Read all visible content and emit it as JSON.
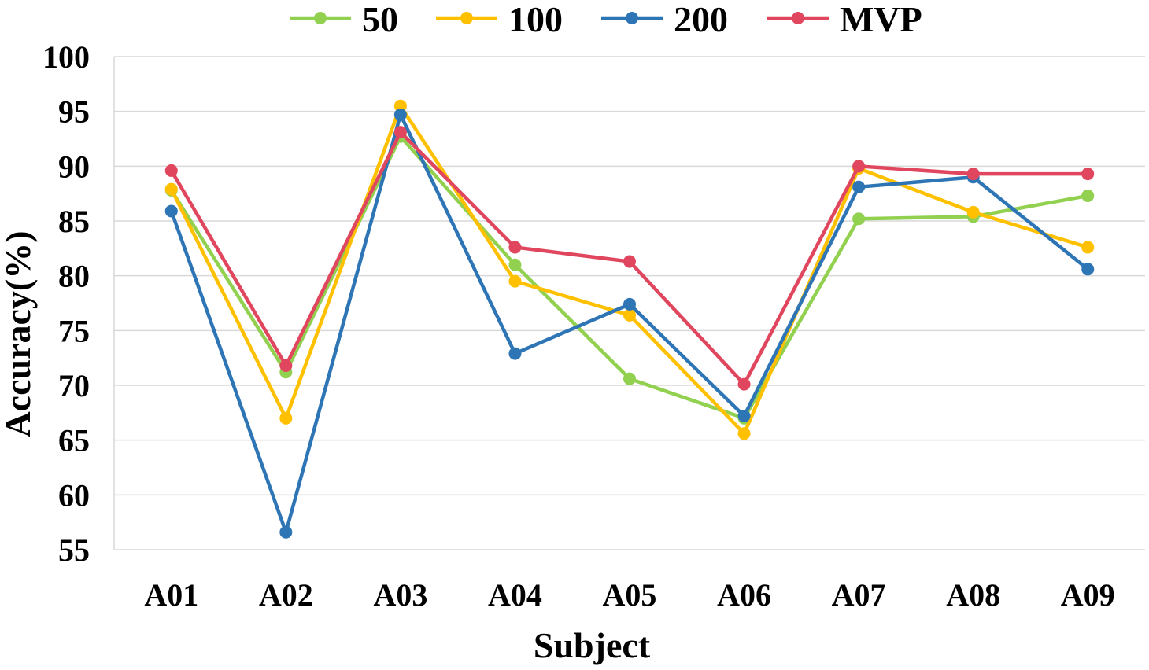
{
  "chart_data": {
    "type": "line",
    "title": "",
    "xlabel": "Subject",
    "ylabel": "Accuracy(%)",
    "ylim": [
      55,
      100
    ],
    "yticks": [
      55,
      60,
      65,
      70,
      75,
      80,
      85,
      90,
      95,
      100
    ],
    "grid": true,
    "legend_position": "top",
    "categories": [
      "A01",
      "A02",
      "A03",
      "A04",
      "A05",
      "A06",
      "A07",
      "A08",
      "A09"
    ],
    "series": [
      {
        "name": "50",
        "color": "#92d050",
        "values": [
          87.8,
          71.2,
          92.7,
          81.0,
          70.6,
          67.0,
          85.2,
          85.4,
          87.3
        ]
      },
      {
        "name": "100",
        "color": "#ffc000",
        "values": [
          87.9,
          67.0,
          95.5,
          79.5,
          76.4,
          65.6,
          89.8,
          85.8,
          82.6
        ]
      },
      {
        "name": "200",
        "color": "#2e75b6",
        "values": [
          85.9,
          56.6,
          94.7,
          72.9,
          77.4,
          67.2,
          88.1,
          89.0,
          80.6
        ]
      },
      {
        "name": "MVP",
        "color": "#e0475e",
        "values": [
          89.6,
          71.8,
          93.1,
          82.6,
          81.3,
          70.1,
          90.0,
          89.3,
          89.3
        ]
      }
    ]
  }
}
